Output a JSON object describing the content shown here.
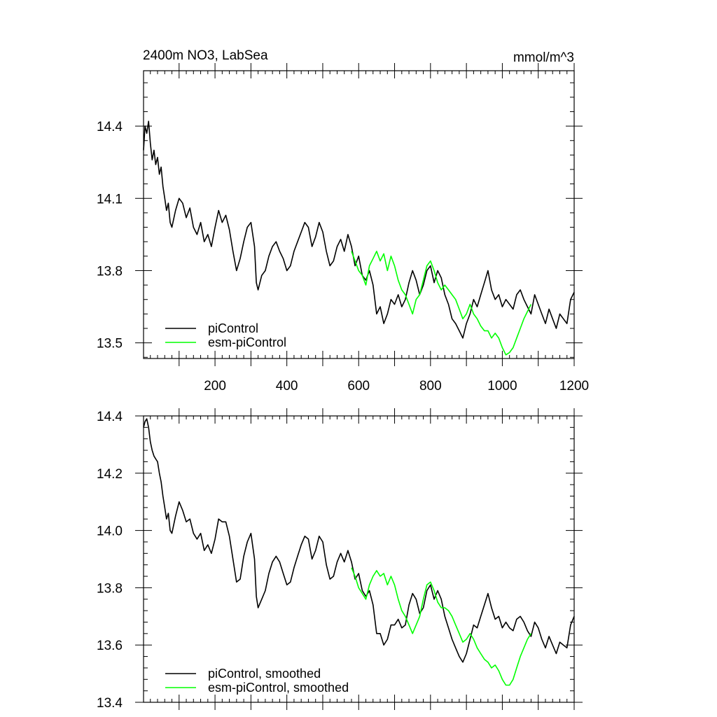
{
  "chart_data": [
    {
      "type": "line",
      "title": "2400m NO3, LabSea",
      "units": "mmol/m^3",
      "xlabel": "",
      "ylabel": "",
      "xlim": [
        1,
        1200
      ],
      "ylim": [
        13.435,
        14.63
      ],
      "xticks": [
        200,
        400,
        600,
        800,
        1000,
        1200
      ],
      "yticks": [
        13.5,
        13.8,
        14.1,
        14.4
      ],
      "xtick_labels": [
        "200",
        "400",
        "600",
        "800",
        "1000",
        "1200"
      ],
      "ytick_labels": [
        "13.5",
        "13.8",
        "14.1",
        "14.4"
      ],
      "legend_position": "bottom-left",
      "grid": false,
      "series": [
        {
          "name": "piControl",
          "color": "#000000",
          "x": [
            1,
            5,
            10,
            15,
            20,
            25,
            30,
            35,
            40,
            45,
            50,
            55,
            60,
            65,
            70,
            75,
            80,
            90,
            100,
            110,
            120,
            130,
            140,
            150,
            160,
            170,
            180,
            190,
            200,
            210,
            220,
            230,
            240,
            250,
            260,
            270,
            280,
            290,
            300,
            310,
            315,
            320,
            330,
            340,
            350,
            360,
            370,
            380,
            390,
            400,
            410,
            420,
            430,
            440,
            450,
            460,
            470,
            480,
            490,
            500,
            510,
            520,
            530,
            540,
            550,
            560,
            570,
            580,
            590,
            600,
            610,
            620,
            630,
            640,
            650,
            660,
            670,
            680,
            690,
            700,
            710,
            720,
            730,
            740,
            750,
            760,
            770,
            780,
            790,
            800,
            810,
            820,
            830,
            840,
            850,
            860,
            870,
            880,
            890,
            900,
            910,
            920,
            930,
            940,
            950,
            960,
            970,
            980,
            990,
            1000,
            1010,
            1020,
            1030,
            1040,
            1050,
            1060,
            1070,
            1080,
            1090,
            1100,
            1110,
            1120,
            1130,
            1140,
            1150,
            1160,
            1170,
            1180,
            1190,
            1200
          ],
          "values": [
            14.3,
            14.4,
            14.37,
            14.42,
            14.33,
            14.26,
            14.3,
            14.24,
            14.27,
            14.2,
            14.23,
            14.15,
            14.1,
            14.05,
            14.08,
            14.0,
            13.98,
            14.05,
            14.1,
            14.08,
            14.02,
            14.06,
            13.98,
            13.95,
            14.0,
            13.92,
            13.95,
            13.9,
            13.98,
            14.05,
            14.0,
            14.03,
            13.97,
            13.88,
            13.8,
            13.85,
            13.92,
            13.98,
            14.0,
            13.9,
            13.75,
            13.72,
            13.78,
            13.8,
            13.86,
            13.9,
            13.92,
            13.88,
            13.85,
            13.8,
            13.82,
            13.88,
            13.92,
            13.96,
            14.0,
            13.98,
            13.9,
            13.94,
            14.0,
            13.96,
            13.88,
            13.82,
            13.84,
            13.9,
            13.93,
            13.88,
            13.95,
            13.9,
            13.82,
            13.86,
            13.78,
            13.76,
            13.8,
            13.74,
            13.62,
            13.65,
            13.58,
            13.62,
            13.68,
            13.66,
            13.7,
            13.65,
            13.68,
            13.75,
            13.8,
            13.76,
            13.7,
            13.74,
            13.8,
            13.82,
            13.75,
            13.8,
            13.77,
            13.7,
            13.66,
            13.6,
            13.58,
            13.55,
            13.52,
            13.58,
            13.62,
            13.68,
            13.65,
            13.7,
            13.75,
            13.8,
            13.72,
            13.68,
            13.7,
            13.65,
            13.68,
            13.66,
            13.64,
            13.7,
            13.72,
            13.68,
            13.65,
            13.62,
            13.7,
            13.66,
            13.62,
            13.58,
            13.64,
            13.6,
            13.56,
            13.62,
            13.6,
            13.58,
            13.68,
            13.71
          ]
        },
        {
          "name": "esm-piControl",
          "color": "#00ff00",
          "x": [
            580,
            590,
            600,
            610,
            620,
            630,
            640,
            650,
            660,
            670,
            680,
            690,
            700,
            710,
            720,
            730,
            740,
            750,
            760,
            770,
            780,
            790,
            800,
            810,
            820,
            830,
            840,
            850,
            860,
            870,
            880,
            890,
            900,
            910,
            920,
            930,
            940,
            950,
            960,
            970,
            980,
            990,
            1000,
            1010,
            1020,
            1030,
            1040,
            1050,
            1060,
            1070,
            1080
          ],
          "values": [
            13.88,
            13.84,
            13.8,
            13.78,
            13.74,
            13.82,
            13.85,
            13.88,
            13.84,
            13.87,
            13.8,
            13.86,
            13.82,
            13.76,
            13.72,
            13.7,
            13.66,
            13.62,
            13.68,
            13.7,
            13.76,
            13.82,
            13.84,
            13.8,
            13.75,
            13.72,
            13.74,
            13.72,
            13.7,
            13.68,
            13.64,
            13.6,
            13.62,
            13.66,
            13.62,
            13.6,
            13.57,
            13.55,
            13.55,
            13.52,
            13.54,
            13.52,
            13.48,
            13.45,
            13.46,
            13.48,
            13.52,
            13.56,
            13.6,
            13.63,
            13.66
          ]
        }
      ]
    },
    {
      "type": "line",
      "title": "",
      "xlabel": "",
      "ylabel": "",
      "xlim": [
        1,
        1200
      ],
      "ylim": [
        13.4,
        14.4
      ],
      "yticks": [
        13.4,
        13.6,
        13.8,
        14.0,
        14.2,
        14.4
      ],
      "ytick_labels": [
        "13.4",
        "13.6",
        "13.8",
        "14.0",
        "14.2",
        "14.4"
      ],
      "legend_position": "bottom-left",
      "grid": false,
      "series": [
        {
          "name": "piControl, smoothed",
          "color": "#000000",
          "x": [
            1,
            5,
            10,
            15,
            20,
            25,
            30,
            35,
            40,
            45,
            50,
            55,
            60,
            65,
            70,
            75,
            80,
            90,
            100,
            110,
            120,
            130,
            140,
            150,
            160,
            170,
            180,
            190,
            200,
            210,
            220,
            230,
            240,
            250,
            260,
            270,
            280,
            290,
            300,
            310,
            315,
            320,
            330,
            340,
            350,
            360,
            370,
            380,
            390,
            400,
            410,
            420,
            430,
            440,
            450,
            460,
            470,
            480,
            490,
            500,
            510,
            520,
            530,
            540,
            550,
            560,
            570,
            580,
            590,
            600,
            610,
            620,
            630,
            640,
            650,
            660,
            670,
            680,
            690,
            700,
            710,
            720,
            730,
            740,
            750,
            760,
            770,
            780,
            790,
            800,
            810,
            820,
            830,
            840,
            850,
            860,
            870,
            880,
            890,
            900,
            910,
            920,
            930,
            940,
            950,
            960,
            970,
            980,
            990,
            1000,
            1010,
            1020,
            1030,
            1040,
            1050,
            1060,
            1070,
            1080,
            1090,
            1100,
            1110,
            1120,
            1130,
            1140,
            1150,
            1160,
            1170,
            1180,
            1190,
            1200
          ],
          "values": [
            14.36,
            14.38,
            14.39,
            14.36,
            14.31,
            14.28,
            14.26,
            14.25,
            14.24,
            14.2,
            14.17,
            14.12,
            14.08,
            14.04,
            14.06,
            14.0,
            13.99,
            14.05,
            14.1,
            14.07,
            14.03,
            14.04,
            13.99,
            13.97,
            13.99,
            13.93,
            13.95,
            13.92,
            13.97,
            14.04,
            14.03,
            14.03,
            13.98,
            13.9,
            13.82,
            13.83,
            13.91,
            13.96,
            13.99,
            13.9,
            13.77,
            13.73,
            13.76,
            13.79,
            13.85,
            13.89,
            13.91,
            13.89,
            13.85,
            13.81,
            13.82,
            13.87,
            13.91,
            13.95,
            13.98,
            13.97,
            13.9,
            13.93,
            13.98,
            13.96,
            13.88,
            13.83,
            13.84,
            13.89,
            13.92,
            13.89,
            13.93,
            13.89,
            13.83,
            13.85,
            13.79,
            13.77,
            13.79,
            13.74,
            13.64,
            13.64,
            13.6,
            13.62,
            13.67,
            13.67,
            13.69,
            13.66,
            13.67,
            13.74,
            13.78,
            13.76,
            13.71,
            13.73,
            13.79,
            13.81,
            13.76,
            13.79,
            13.76,
            13.7,
            13.66,
            13.62,
            13.59,
            13.56,
            13.54,
            13.57,
            13.62,
            13.67,
            13.66,
            13.7,
            13.74,
            13.78,
            13.73,
            13.69,
            13.7,
            13.66,
            13.68,
            13.66,
            13.65,
            13.69,
            13.7,
            13.68,
            13.65,
            13.63,
            13.68,
            13.66,
            13.62,
            13.59,
            13.63,
            13.6,
            13.57,
            13.61,
            13.6,
            13.59,
            13.67,
            13.7
          ]
        },
        {
          "name": "esm-piControl, smoothed",
          "color": "#00ff00",
          "x": [
            580,
            590,
            600,
            610,
            620,
            630,
            640,
            650,
            660,
            670,
            680,
            690,
            700,
            710,
            720,
            730,
            740,
            750,
            760,
            770,
            780,
            790,
            800,
            810,
            820,
            830,
            840,
            850,
            860,
            870,
            880,
            890,
            900,
            910,
            920,
            930,
            940,
            950,
            960,
            970,
            980,
            990,
            1000,
            1010,
            1020,
            1030,
            1040,
            1050,
            1060,
            1070,
            1080
          ],
          "values": [
            13.87,
            13.84,
            13.8,
            13.78,
            13.76,
            13.81,
            13.84,
            13.86,
            13.84,
            13.85,
            13.81,
            13.84,
            13.81,
            13.76,
            13.72,
            13.7,
            13.67,
            13.64,
            13.67,
            13.7,
            13.76,
            13.81,
            13.82,
            13.79,
            13.75,
            13.73,
            13.73,
            13.72,
            13.7,
            13.67,
            13.64,
            13.61,
            13.62,
            13.64,
            13.62,
            13.59,
            13.57,
            13.55,
            13.54,
            13.52,
            13.53,
            13.51,
            13.48,
            13.46,
            13.46,
            13.48,
            13.52,
            13.56,
            13.59,
            13.62,
            13.64
          ]
        }
      ]
    }
  ]
}
